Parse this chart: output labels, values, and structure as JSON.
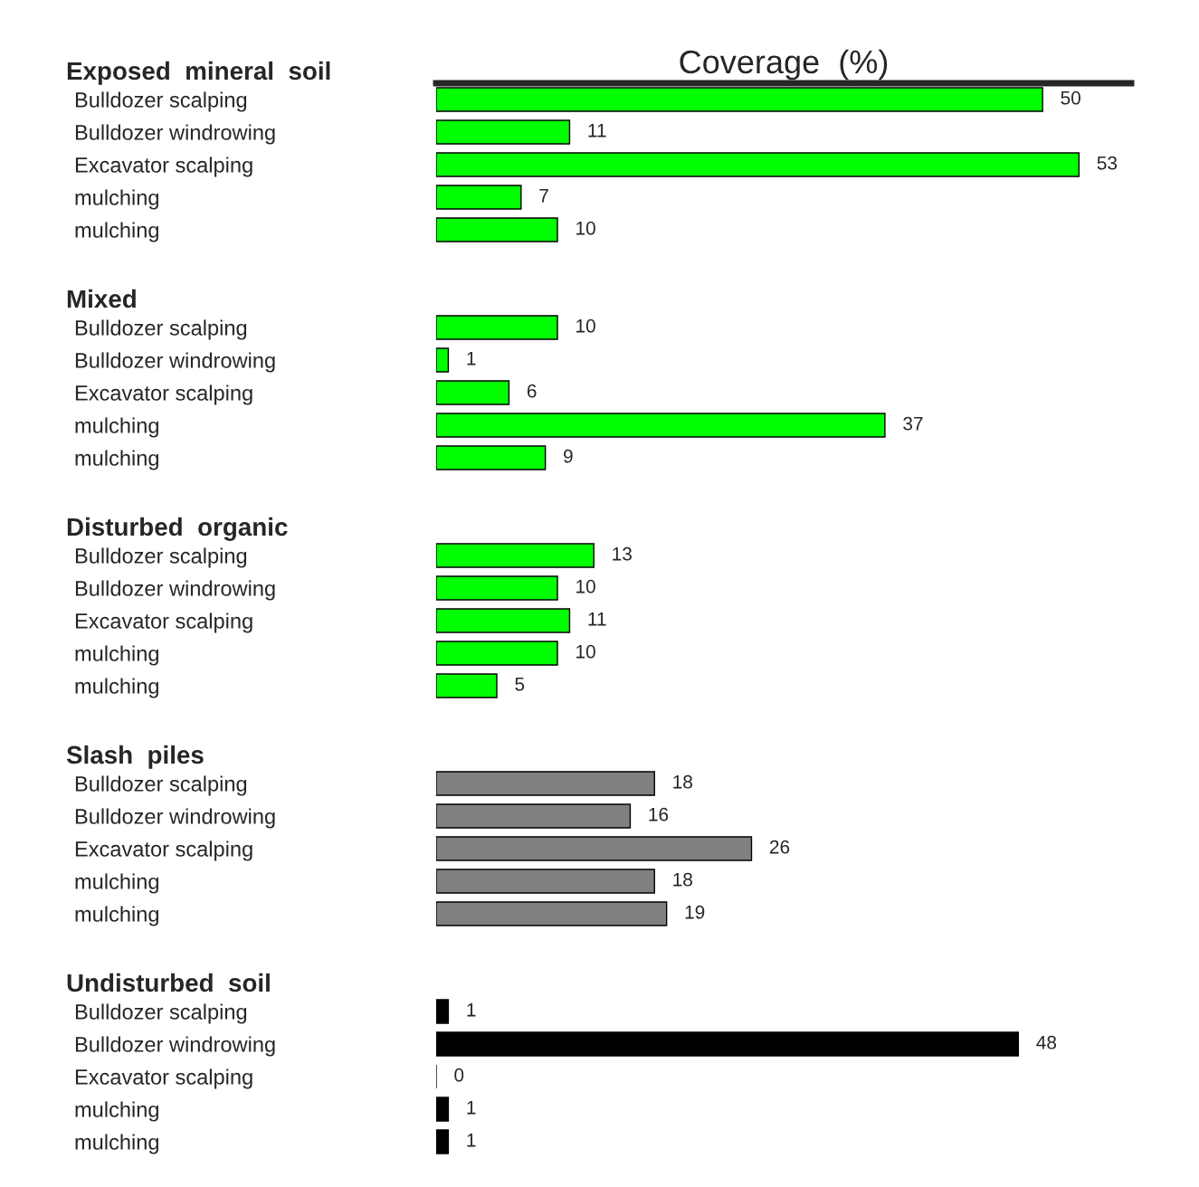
{
  "chart_data": [
    {
      "type": "bar",
      "orientation": "horizontal",
      "title": "Exposed  mineral  soil",
      "xlabel": "Coverage  (%)",
      "categories": [
        "Bulldozer scalping",
        "Bulldozer windrowing",
        "Excavator scalping",
        "mulching",
        "mulching"
      ],
      "values": [
        50,
        11,
        53,
        7,
        10
      ],
      "color": "#00ff00",
      "data_labels": true,
      "xlim": [
        0,
        57.3
      ]
    },
    {
      "type": "bar",
      "orientation": "horizontal",
      "title": "Mixed",
      "categories": [
        "Bulldozer scalping",
        "Bulldozer windrowing",
        "Excavator scalping",
        "mulching",
        "mulching"
      ],
      "values": [
        10,
        1,
        6,
        37,
        9
      ],
      "color": "#00ff00",
      "data_labels": true
    },
    {
      "type": "bar",
      "orientation": "horizontal",
      "title": "Disturbed  organic",
      "categories": [
        "Bulldozer scalping",
        "Bulldozer windrowing",
        "Excavator scalping",
        "mulching",
        "mulching"
      ],
      "values": [
        13,
        10,
        11,
        10,
        5
      ],
      "color": "#00ff00",
      "data_labels": true
    },
    {
      "type": "bar",
      "orientation": "horizontal",
      "title": "Slash  piles",
      "categories": [
        "Bulldozer scalping",
        "Bulldozer windrowing",
        "Excavator scalping",
        "mulching",
        "mulching"
      ],
      "values": [
        18,
        16,
        26,
        18,
        19
      ],
      "color": "#808080",
      "data_labels": true
    },
    {
      "type": "bar",
      "orientation": "horizontal",
      "title": "Undisturbed  soil",
      "categories": [
        "Bulldozer scalping",
        "Bulldozer windrowing",
        "Excavator scalping",
        "mulching",
        "mulching"
      ],
      "values": [
        1,
        48,
        0,
        1,
        1
      ],
      "color": "#000000",
      "data_labels": true
    }
  ]
}
